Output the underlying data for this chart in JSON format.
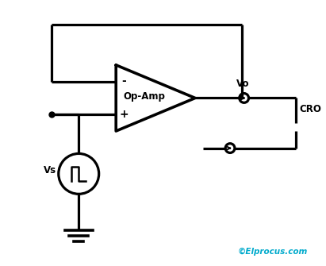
{
  "bg_color": "#ffffff",
  "line_color": "#000000",
  "accent_color": "#00AACC",
  "opamp_label": "Op-Amp",
  "minus_label": "-",
  "plus_label": "+",
  "vs_label": "Vs",
  "vo_label": "Vo",
  "cro_label": "CRO",
  "watermark": "©Elprocus.com",
  "lw": 2.3
}
